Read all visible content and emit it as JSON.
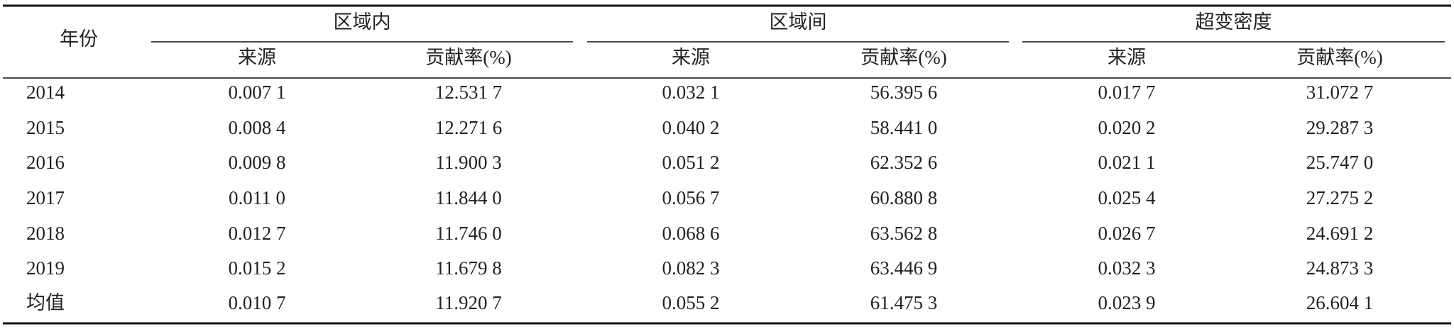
{
  "table": {
    "corner": "年份",
    "groups": [
      {
        "title": "区域内",
        "columns": [
          "来源",
          "贡献率(%)"
        ]
      },
      {
        "title": "区域间",
        "columns": [
          "来源",
          "贡献率(%)"
        ]
      },
      {
        "title": "超变密度",
        "columns": [
          "来源",
          "贡献率(%)"
        ]
      }
    ],
    "rows": [
      [
        "2014",
        "0.007 1",
        "12.531 7",
        "0.032 1",
        "56.395 6",
        "0.017 7",
        "31.072 7"
      ],
      [
        "2015",
        "0.008 4",
        "12.271 6",
        "0.040 2",
        "58.441 0",
        "0.020 2",
        "29.287 3"
      ],
      [
        "2016",
        "0.009 8",
        "11.900 3",
        "0.051 2",
        "62.352 6",
        "0.021 1",
        "25.747 0"
      ],
      [
        "2017",
        "0.011 0",
        "11.844 0",
        "0.056 7",
        "60.880 8",
        "0.025 4",
        "27.275 2"
      ],
      [
        "2018",
        "0.012 7",
        "11.746 0",
        "0.068 6",
        "63.562 8",
        "0.026 7",
        "24.691 2"
      ],
      [
        "2019",
        "0.015 2",
        "11.679 8",
        "0.082 3",
        "63.446 9",
        "0.032 3",
        "24.873 3"
      ],
      [
        "均值",
        "0.010 7",
        "11.920 7",
        "0.055 2",
        "61.475 3",
        "0.023 9",
        "26.604 1"
      ]
    ]
  }
}
